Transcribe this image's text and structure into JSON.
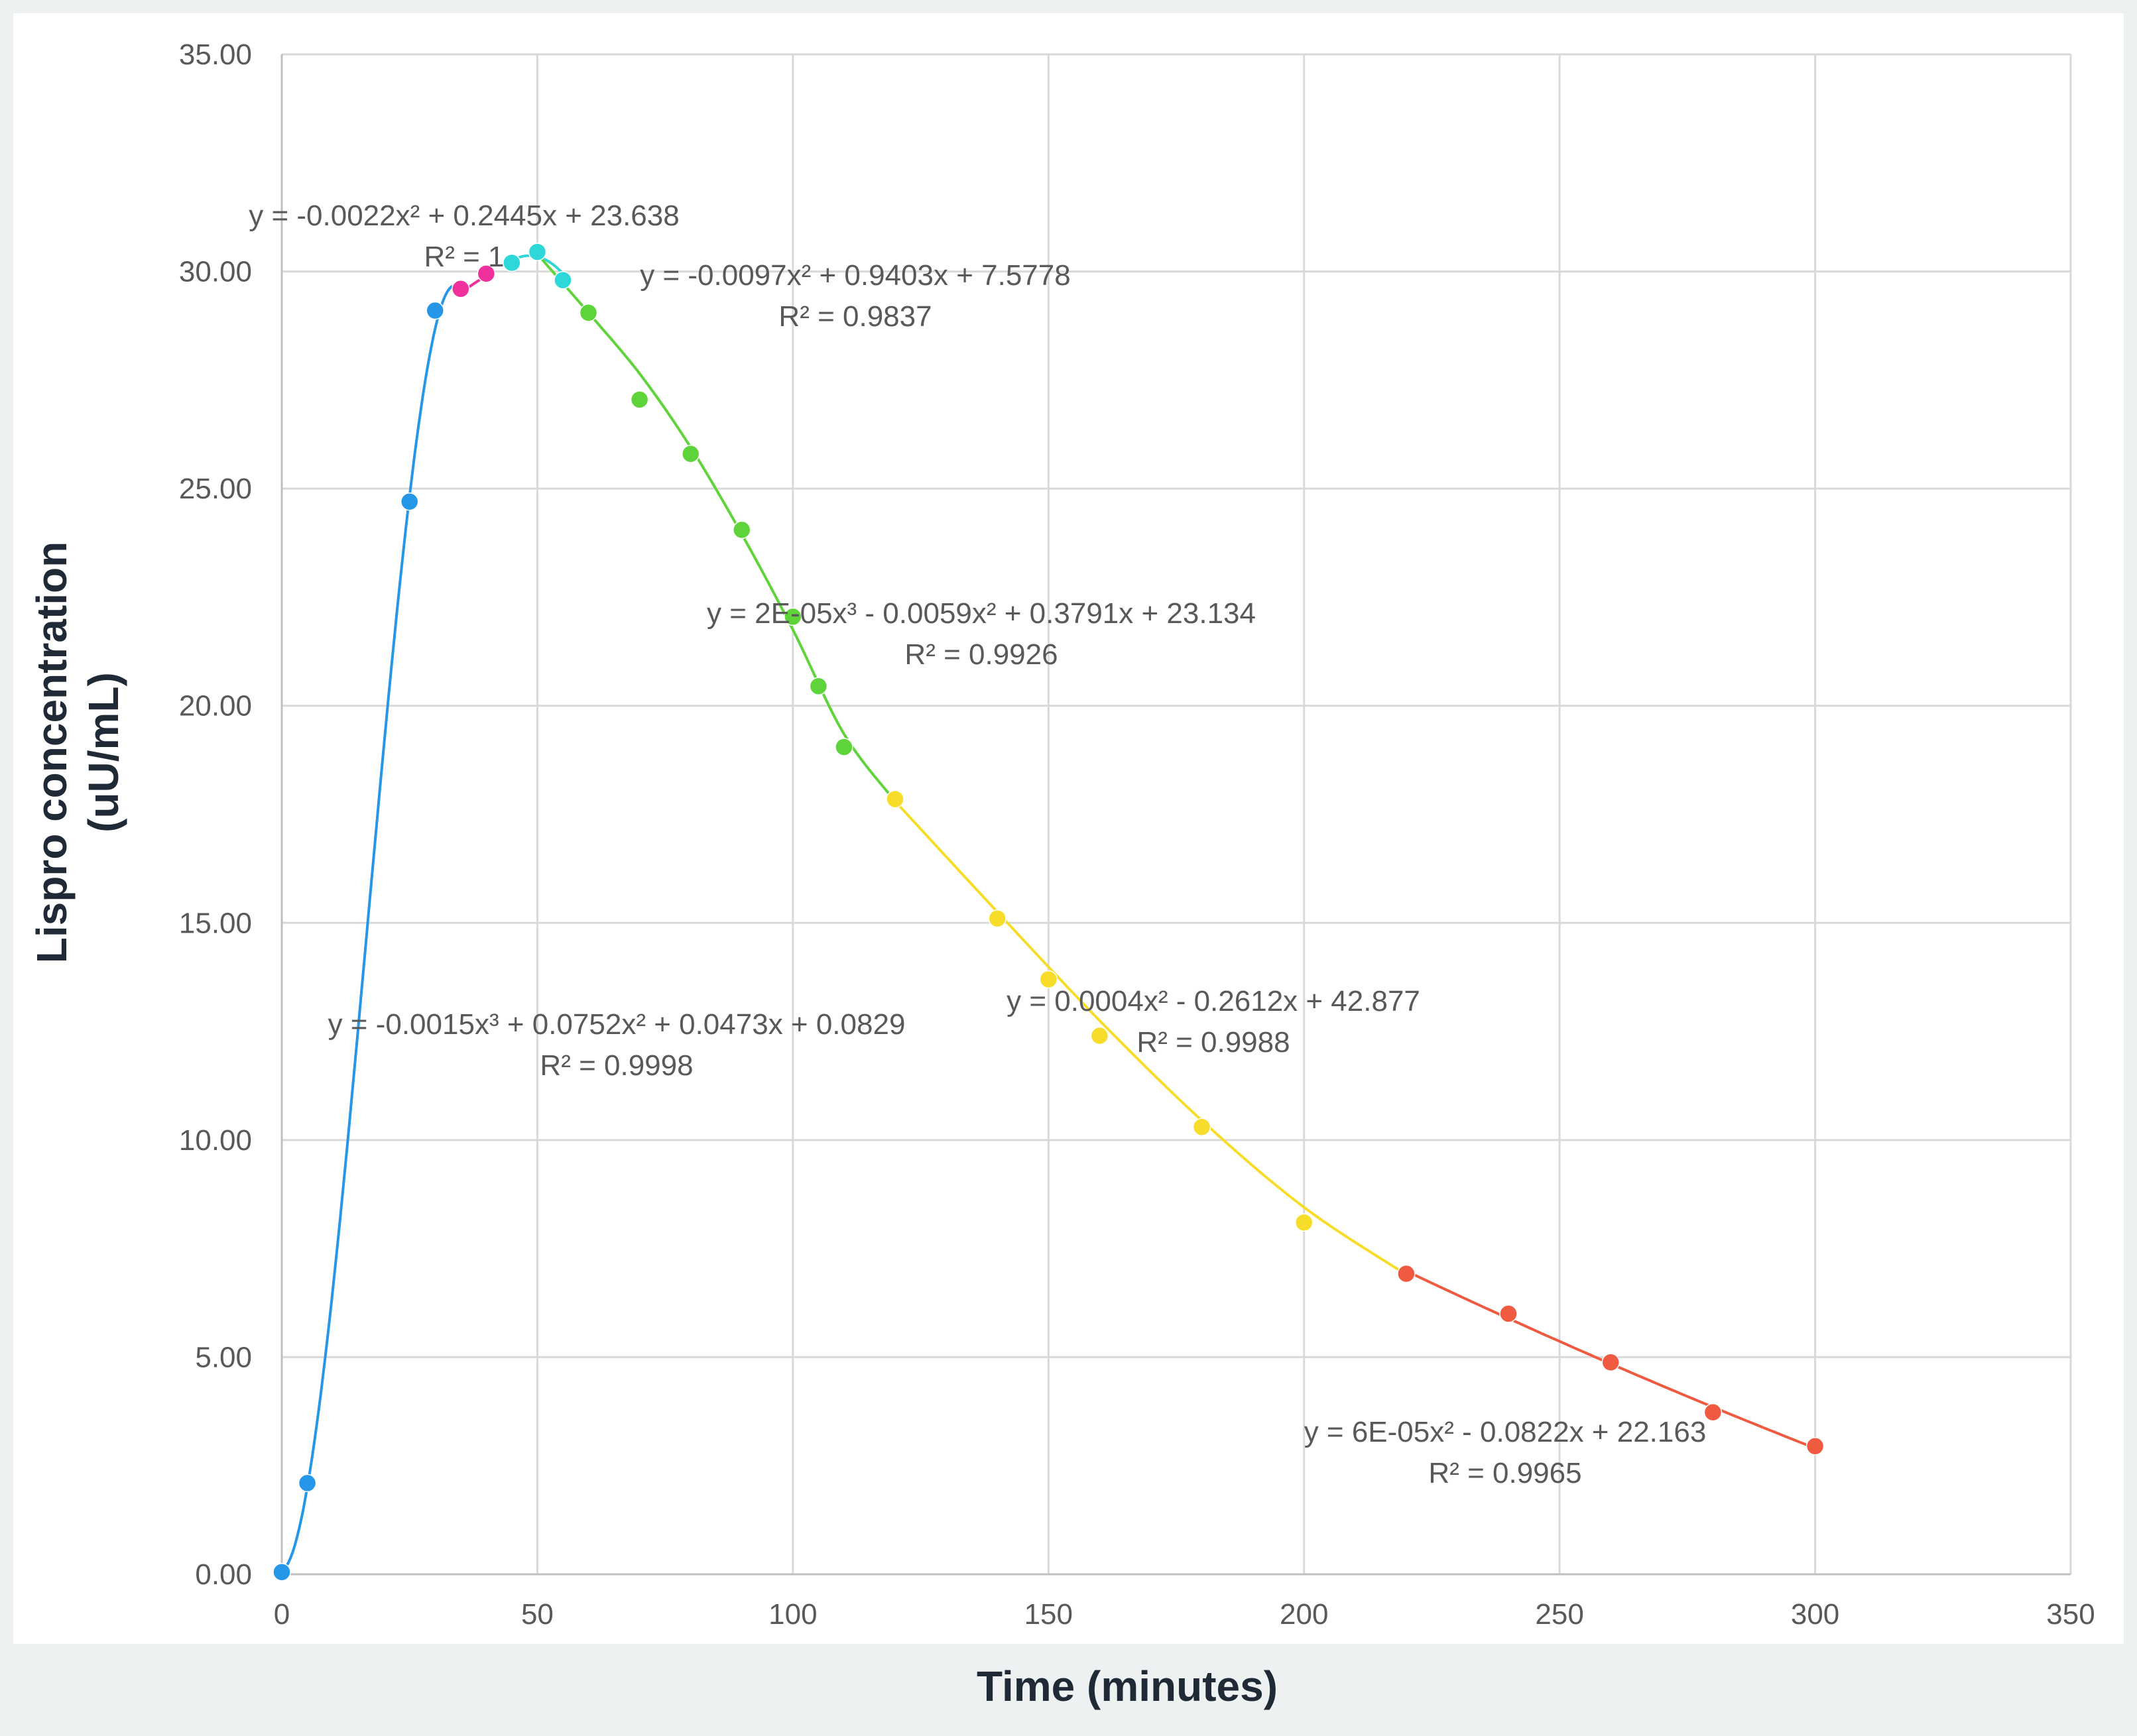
{
  "chart_data": {
    "type": "scatter",
    "title": "",
    "xlabel": "Time (minutes)",
    "ylabel_line1": "Lispro concentration",
    "ylabel_line2": "(uU/mL)",
    "xlim": [
      0,
      350
    ],
    "ylim": [
      0,
      35
    ],
    "grid": true,
    "legend": "none",
    "x_ticks": [
      "0",
      "50",
      "100",
      "150",
      "200",
      "250",
      "300",
      "350"
    ],
    "y_ticks": [
      "0.00",
      "5.00",
      "10.00",
      "15.00",
      "20.00",
      "25.00",
      "30.00",
      "35.00"
    ],
    "colors": {
      "blue": "#2596e8",
      "magenta": "#f0309c",
      "cyan": "#2fd8d8",
      "green": "#5fd43a",
      "yellow": "#f7dc2a",
      "red": "#f05a40",
      "grid": "#d9d9d9",
      "axis": "#bfbfbf"
    },
    "series": [
      {
        "color": "#2596e8",
        "points": [
          [
            0,
            0.05
          ],
          [
            5,
            2.1
          ],
          [
            25,
            24.7
          ],
          [
            30,
            29.1
          ]
        ],
        "trendline": {
          "kind": "poly",
          "coef": [
            0.0829,
            0.0473,
            0.0752,
            -0.0015
          ],
          "from": 0,
          "to": 34
        },
        "equation": "y = -0.0015x³ + 0.0752x² + 0.0473x + 0.0829",
        "r2": "R² = 0.9998"
      },
      {
        "color": "#f0309c",
        "points": [
          [
            35,
            29.6
          ],
          [
            40,
            29.95
          ]
        ],
        "trendline": {
          "kind": "poly",
          "coef": [
            23.638,
            0.2445,
            -0.0022
          ],
          "from": 35,
          "to": 40
        },
        "equation": "y = -0.0022x² + 0.2445x + 23.638",
        "r2": "R² = 1"
      },
      {
        "color": "#2fd8d8",
        "points": [
          [
            45,
            30.2
          ],
          [
            50,
            30.45
          ],
          [
            55,
            29.8
          ]
        ],
        "trendline": {
          "kind": "poly",
          "coef": [
            7.5778,
            0.9403,
            -0.0097
          ],
          "from": 45,
          "to": 55
        },
        "equation": "y = -0.0097x² + 0.9403x + 7.5778",
        "r2": "R² = 0.9837"
      },
      {
        "color": "#5fd43a",
        "points": [
          [
            60,
            29.05
          ],
          [
            70,
            27.05
          ],
          [
            80,
            25.8
          ],
          [
            90,
            24.05
          ],
          [
            100,
            22.05
          ],
          [
            105,
            20.45
          ],
          [
            110,
            19.05
          ]
        ],
        "trendline": {
          "kind": "spline",
          "knots": [
            [
              50,
              30.4
            ],
            [
              60,
              29.05
            ],
            [
              70,
              27.65
            ],
            [
              80,
              25.95
            ],
            [
              90,
              23.95
            ],
            [
              100,
              21.75
            ],
            [
              110,
              19.35
            ],
            [
              120,
              17.8
            ]
          ]
        },
        "equation": "y = 2E-05x³ - 0.0059x² + 0.3791x + 23.134",
        "r2": "R² = 0.9926"
      },
      {
        "color": "#f7dc2a",
        "points": [
          [
            120,
            17.85
          ],
          [
            140,
            15.1
          ],
          [
            150,
            13.7
          ],
          [
            160,
            12.4
          ],
          [
            180,
            10.3
          ],
          [
            200,
            8.1
          ]
        ],
        "trendline": {
          "kind": "spline",
          "knots": [
            [
              120,
              17.8
            ],
            [
              140,
              15.25
            ],
            [
              160,
              12.75
            ],
            [
              180,
              10.45
            ],
            [
              200,
              8.45
            ],
            [
              220,
              6.9
            ]
          ]
        },
        "equation": "y = 0.0004x² - 0.2612x + 42.877",
        "r2": "R² = 0.9988"
      },
      {
        "color": "#f05a40",
        "points": [
          [
            220,
            6.92
          ],
          [
            240,
            6.0
          ],
          [
            260,
            4.88
          ],
          [
            280,
            3.73
          ],
          [
            300,
            2.95
          ]
        ],
        "trendline": {
          "kind": "poly",
          "coef": [
            22.163,
            -0.0822,
            6e-05
          ],
          "from": 220,
          "to": 300
        },
        "equation": "y = 6E-05x² - 0.0822x + 22.163",
        "r2": "R² = 0.9965"
      }
    ]
  }
}
